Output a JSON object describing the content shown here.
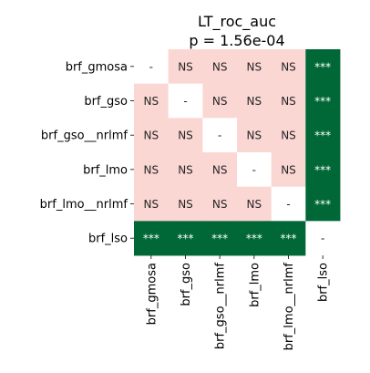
{
  "chart_data": {
    "type": "heatmap",
    "title_lines": [
      "LT_roc_auc",
      "p = 1.56e-04"
    ],
    "rows": [
      "brf_gmosa",
      "brf_gso",
      "brf_gso__nrlmf",
      "brf_lmo",
      "brf_lmo__nrlmf",
      "brf_lso"
    ],
    "cols": [
      "brf_gmosa",
      "brf_gso",
      "brf_gso__nrlmf",
      "brf_lmo",
      "brf_lmo__nrlmf",
      "brf_lso"
    ],
    "cells": [
      [
        "-",
        "NS",
        "NS",
        "NS",
        "NS",
        "***"
      ],
      [
        "NS",
        "-",
        "NS",
        "NS",
        "NS",
        "***"
      ],
      [
        "NS",
        "NS",
        "-",
        "NS",
        "NS",
        "***"
      ],
      [
        "NS",
        "NS",
        "NS",
        "-",
        "NS",
        "***"
      ],
      [
        "NS",
        "NS",
        "NS",
        "NS",
        "-",
        "***"
      ],
      [
        "***",
        "***",
        "***",
        "***",
        "***",
        "-"
      ]
    ],
    "colors": {
      "NS": "#fbd7d4",
      "***": "#006837",
      "-": "#ffffff",
      "text_light": "#ffffff",
      "text_dark": "#262626"
    }
  }
}
